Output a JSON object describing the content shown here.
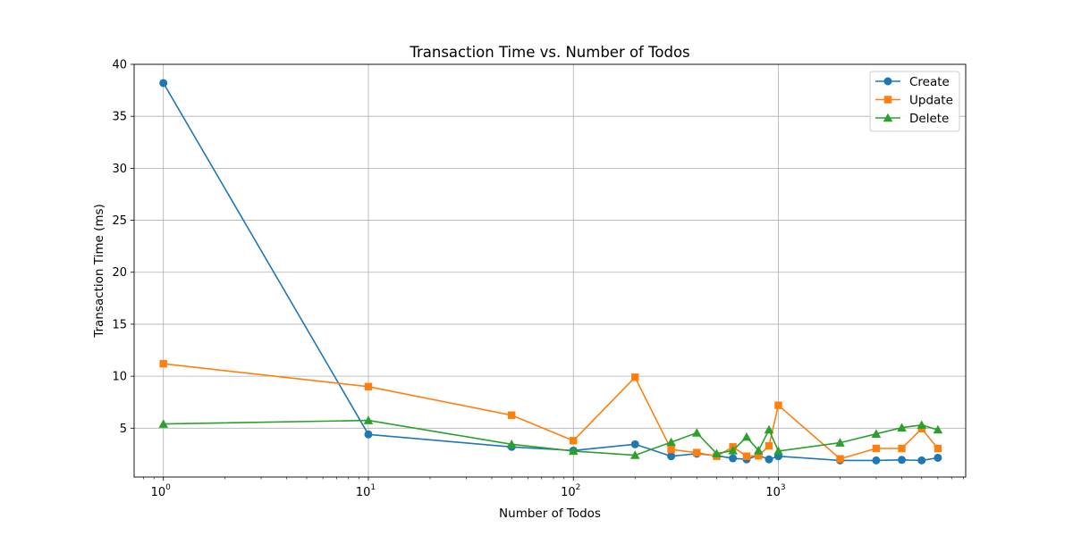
{
  "chart_data": {
    "type": "line",
    "title": "Transaction Time vs. Number of Todos",
    "xlabel": "Number of Todos",
    "ylabel": "Transaction Time (ms)",
    "xscale": "log",
    "xlim": [
      0.72,
      8200
    ],
    "ylim": [
      0.3,
      40
    ],
    "grid": true,
    "legend_position": "top-right",
    "x_ticks": [
      {
        "value": 1,
        "base": "10",
        "exp": "0"
      },
      {
        "value": 10,
        "base": "10",
        "exp": "1"
      },
      {
        "value": 100,
        "base": "10",
        "exp": "2"
      },
      {
        "value": 1000,
        "base": "10",
        "exp": "3"
      }
    ],
    "y_ticks": [
      5,
      10,
      15,
      20,
      25,
      30,
      35,
      40
    ],
    "x": [
      1,
      10,
      50,
      100,
      200,
      300,
      400,
      500,
      600,
      700,
      800,
      900,
      1000,
      2000,
      3000,
      4000,
      5000,
      6000
    ],
    "series": [
      {
        "name": "Create",
        "color": "#1f77b4",
        "marker": "circle",
        "values": [
          38.2,
          4.4,
          3.2,
          2.85,
          3.45,
          2.3,
          2.55,
          2.35,
          2.1,
          2.0,
          2.4,
          2.0,
          2.3,
          1.9,
          1.9,
          1.95,
          1.9,
          2.15
        ]
      },
      {
        "name": "Update",
        "color": "#ff7f0e",
        "marker": "square",
        "values": [
          11.2,
          9.0,
          6.25,
          3.8,
          9.9,
          2.95,
          2.65,
          2.3,
          3.2,
          2.3,
          2.35,
          3.3,
          7.2,
          2.05,
          3.05,
          3.05,
          4.95,
          3.05
        ]
      },
      {
        "name": "Delete",
        "color": "#2ca02c",
        "marker": "triangle",
        "values": [
          5.4,
          5.75,
          3.45,
          2.8,
          2.4,
          3.65,
          4.55,
          2.55,
          2.85,
          4.15,
          2.85,
          4.85,
          2.8,
          3.6,
          4.45,
          5.05,
          5.3,
          4.85
        ]
      }
    ]
  }
}
